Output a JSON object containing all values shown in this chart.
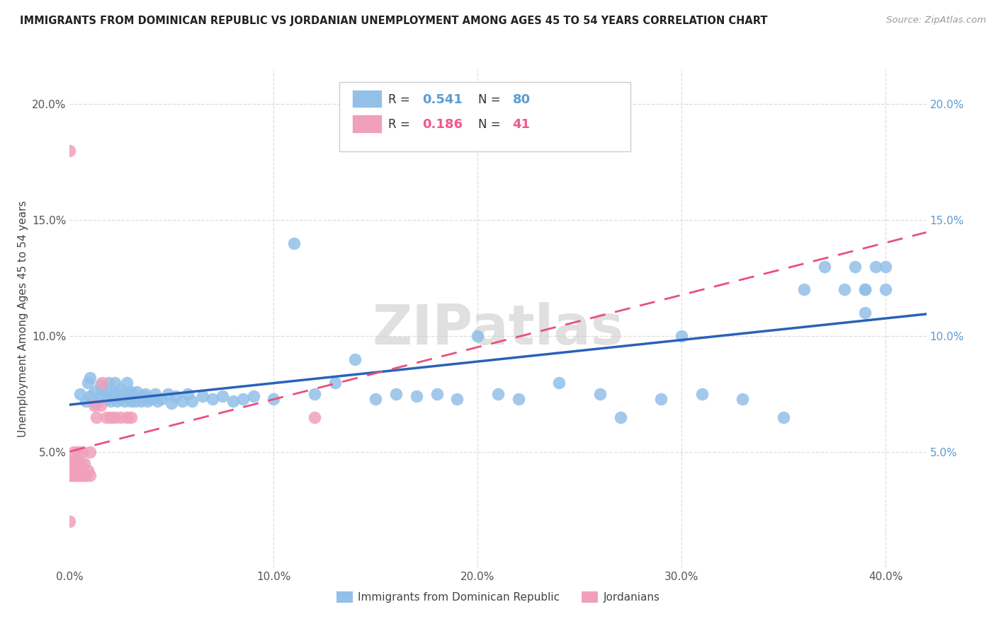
{
  "title": "IMMIGRANTS FROM DOMINICAN REPUBLIC VS JORDANIAN UNEMPLOYMENT AMONG AGES 45 TO 54 YEARS CORRELATION CHART",
  "source": "Source: ZipAtlas.com",
  "ylabel": "Unemployment Among Ages 45 to 54 years",
  "xlim": [
    0.0,
    0.42
  ],
  "ylim": [
    0.0,
    0.215
  ],
  "xticks": [
    0.0,
    0.1,
    0.2,
    0.3,
    0.4
  ],
  "xticklabels": [
    "0.0%",
    "10.0%",
    "20.0%",
    "30.0%",
    "40.0%"
  ],
  "yticks": [
    0.0,
    0.05,
    0.1,
    0.15,
    0.2
  ],
  "yticklabels_left": [
    "",
    "5.0%",
    "10.0%",
    "15.0%",
    "20.0%"
  ],
  "yticklabels_right": [
    "",
    "5.0%",
    "10.0%",
    "15.0%",
    "20.0%"
  ],
  "legend1_label": "Immigrants from Dominican Republic",
  "legend2_label": "Jordanians",
  "r1": 0.541,
  "n1": 80,
  "r2": 0.186,
  "n2": 41,
  "color_blue": "#92C0E8",
  "color_pink": "#F0A0BB",
  "line_blue": "#2962B8",
  "line_pink": "#E8517A",
  "watermark": "ZIPatlas",
  "blue_x": [
    0.005,
    0.008,
    0.009,
    0.01,
    0.01,
    0.012,
    0.013,
    0.015,
    0.015,
    0.016,
    0.018,
    0.019,
    0.02,
    0.02,
    0.021,
    0.022,
    0.022,
    0.023,
    0.025,
    0.025,
    0.026,
    0.027,
    0.028,
    0.029,
    0.03,
    0.03,
    0.031,
    0.032,
    0.033,
    0.035,
    0.036,
    0.037,
    0.038,
    0.04,
    0.042,
    0.043,
    0.045,
    0.048,
    0.05,
    0.052,
    0.055,
    0.058,
    0.06,
    0.065,
    0.07,
    0.075,
    0.08,
    0.085,
    0.09,
    0.1,
    0.11,
    0.12,
    0.13,
    0.14,
    0.15,
    0.16,
    0.17,
    0.18,
    0.19,
    0.2,
    0.21,
    0.22,
    0.24,
    0.26,
    0.27,
    0.29,
    0.3,
    0.31,
    0.33,
    0.35,
    0.36,
    0.37,
    0.38,
    0.385,
    0.39,
    0.39,
    0.39,
    0.395,
    0.4,
    0.4
  ],
  "blue_y": [
    0.075,
    0.072,
    0.08,
    0.074,
    0.082,
    0.076,
    0.071,
    0.074,
    0.079,
    0.077,
    0.073,
    0.08,
    0.072,
    0.076,
    0.074,
    0.08,
    0.075,
    0.072,
    0.073,
    0.077,
    0.075,
    0.072,
    0.08,
    0.075,
    0.072,
    0.076,
    0.074,
    0.072,
    0.076,
    0.072,
    0.074,
    0.075,
    0.072,
    0.073,
    0.075,
    0.072,
    0.073,
    0.075,
    0.071,
    0.074,
    0.072,
    0.075,
    0.072,
    0.074,
    0.073,
    0.074,
    0.072,
    0.073,
    0.074,
    0.073,
    0.14,
    0.075,
    0.08,
    0.09,
    0.073,
    0.075,
    0.074,
    0.075,
    0.073,
    0.1,
    0.075,
    0.073,
    0.08,
    0.075,
    0.065,
    0.073,
    0.1,
    0.075,
    0.073,
    0.065,
    0.12,
    0.13,
    0.12,
    0.13,
    0.11,
    0.12,
    0.12,
    0.13,
    0.12,
    0.13
  ],
  "pink_x": [
    0.0,
    0.0,
    0.0,
    0.0,
    0.001,
    0.001,
    0.001,
    0.001,
    0.002,
    0.002,
    0.002,
    0.002,
    0.003,
    0.003,
    0.003,
    0.004,
    0.004,
    0.005,
    0.005,
    0.005,
    0.006,
    0.006,
    0.007,
    0.007,
    0.008,
    0.009,
    0.01,
    0.01,
    0.012,
    0.013,
    0.015,
    0.016,
    0.018,
    0.02,
    0.022,
    0.025,
    0.028,
    0.03,
    0.12,
    0.0,
    0.0
  ],
  "pink_y": [
    0.04,
    0.042,
    0.045,
    0.046,
    0.04,
    0.042,
    0.045,
    0.046,
    0.04,
    0.042,
    0.045,
    0.05,
    0.04,
    0.042,
    0.045,
    0.04,
    0.05,
    0.04,
    0.042,
    0.045,
    0.04,
    0.05,
    0.04,
    0.045,
    0.04,
    0.042,
    0.04,
    0.05,
    0.07,
    0.065,
    0.07,
    0.08,
    0.065,
    0.065,
    0.065,
    0.065,
    0.065,
    0.065,
    0.065,
    0.18,
    0.02
  ]
}
